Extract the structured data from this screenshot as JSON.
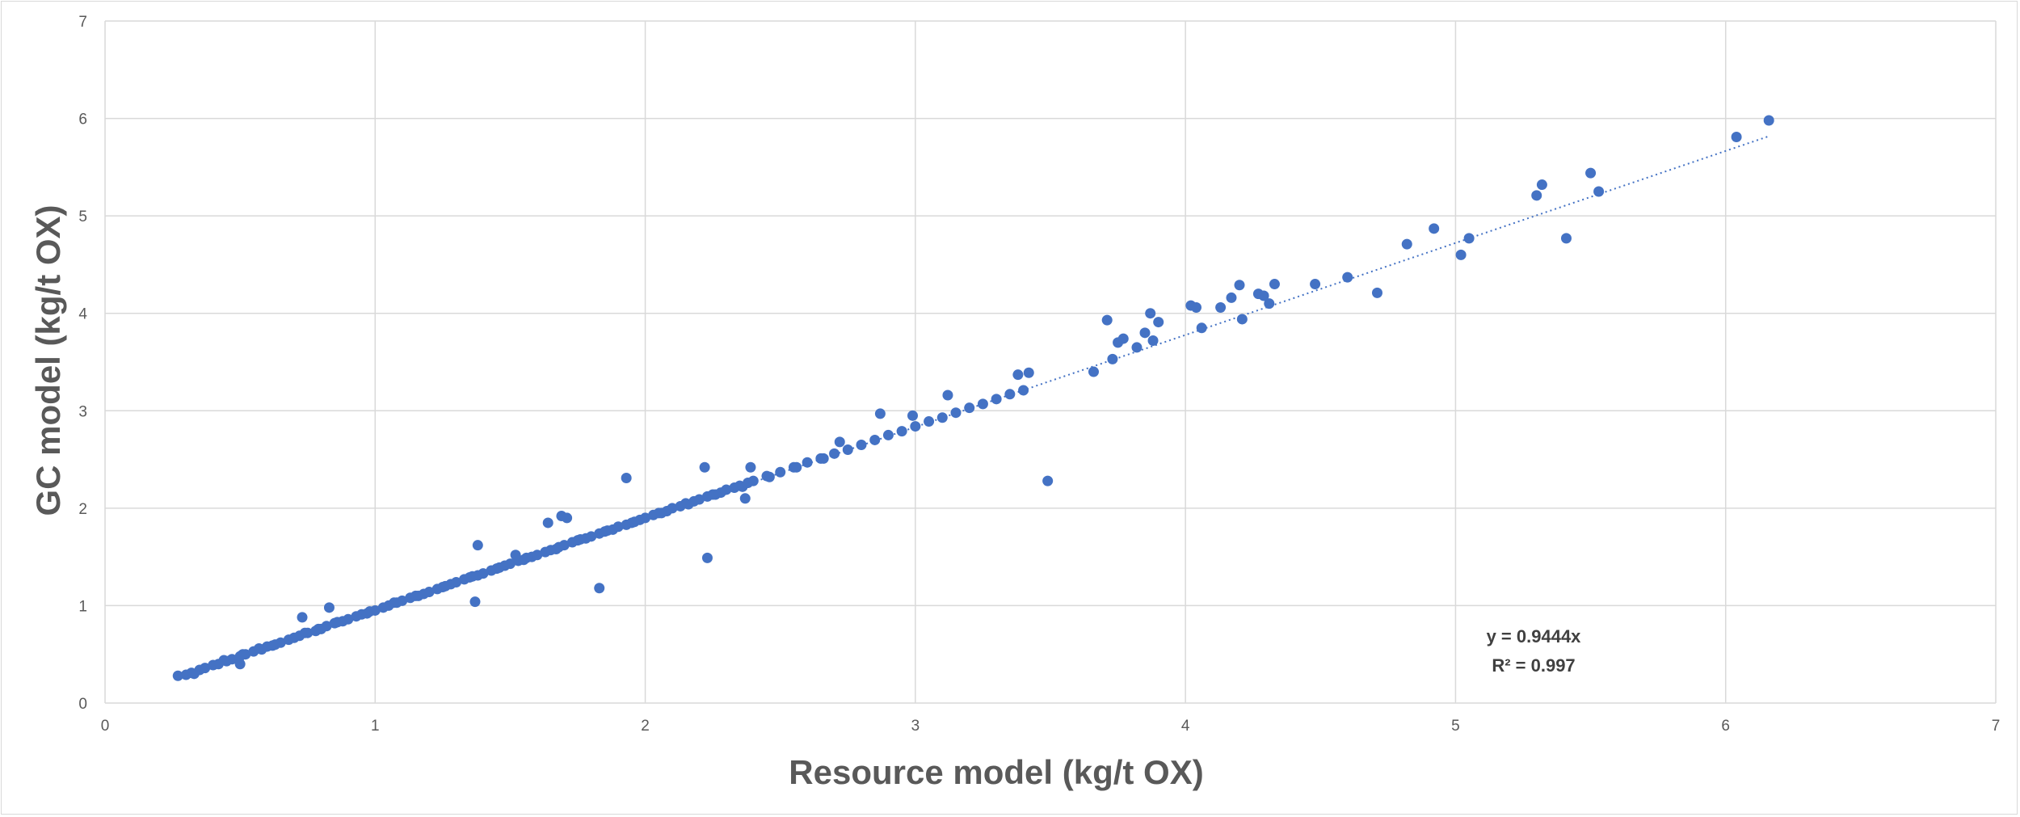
{
  "chart_data": {
    "type": "scatter",
    "title": "",
    "xlabel": "Resource model (kg/t OX)",
    "ylabel": "GC model (kg/t OX)",
    "xlim": [
      0,
      7
    ],
    "ylim": [
      0,
      7
    ],
    "x_ticks": [
      "0",
      "1",
      "2",
      "3",
      "4",
      "5",
      "6",
      "7"
    ],
    "y_ticks": [
      "0",
      "1",
      "2",
      "3",
      "4",
      "5",
      "6",
      "7"
    ],
    "grid": true,
    "point_color": "#4472C4",
    "trendline": {
      "type": "linear-through-origin",
      "slope": 0.9444,
      "x_range": [
        0.27,
        6.16
      ],
      "style": "dotted",
      "equation_label": "y = 0.9444x",
      "r2_label": "R² = 0.997"
    },
    "series": [
      {
        "name": "",
        "x": [
          0.27,
          0.3,
          0.32,
          0.35,
          0.37,
          0.4,
          0.42,
          0.45,
          0.47,
          0.5,
          0.52,
          0.55,
          0.58,
          0.6,
          0.62,
          0.65,
          0.68,
          0.7,
          0.72,
          0.75,
          0.78,
          0.8,
          0.82,
          0.85,
          0.88,
          0.9,
          0.93,
          0.95,
          0.98,
          1.0,
          1.03,
          1.05,
          1.08,
          1.1,
          1.13,
          1.15,
          1.18,
          1.2,
          1.23,
          1.25,
          1.28,
          1.3,
          1.33,
          1.35,
          1.38,
          1.4,
          1.43,
          1.45,
          1.48,
          1.5,
          1.53,
          1.55,
          1.58,
          1.6,
          1.63,
          1.65,
          1.68,
          1.7,
          1.73,
          1.75,
          1.78,
          1.8,
          1.83,
          1.85,
          1.88,
          1.9,
          1.93,
          1.95,
          1.98,
          2.0,
          2.03,
          2.05,
          2.08,
          2.1,
          2.13,
          2.15,
          2.18,
          2.2,
          2.23,
          2.25,
          2.28,
          2.3,
          2.33,
          2.35,
          2.38,
          2.4,
          2.45,
          2.5,
          2.55,
          2.6,
          2.65,
          2.7,
          2.75,
          2.8,
          2.85,
          2.9,
          2.95,
          3.0,
          3.05,
          3.1,
          3.15,
          3.2,
          3.25,
          3.3,
          3.35,
          3.4,
          0.33,
          0.44,
          0.51,
          0.57,
          0.63,
          0.74,
          0.79,
          0.86,
          0.97,
          1.07,
          1.16,
          1.26,
          1.36,
          1.46,
          1.56,
          1.67,
          1.76,
          1.86,
          1.96,
          2.06,
          2.16,
          2.26,
          2.36,
          2.46,
          2.56,
          2.66,
          0.5,
          0.73,
          0.83,
          1.37,
          1.38,
          1.52,
          1.64,
          1.69,
          1.71,
          1.83,
          1.93,
          2.22,
          2.23,
          2.37,
          2.39,
          2.72,
          2.87,
          2.99,
          3.12,
          3.38,
          3.42,
          3.49,
          3.66,
          3.71,
          3.73,
          3.75,
          3.77,
          3.82,
          3.85,
          3.87,
          3.88,
          3.9,
          4.02,
          4.04,
          4.06,
          4.13,
          4.17,
          4.2,
          4.21,
          4.27,
          4.29,
          4.31,
          4.33,
          4.48,
          4.6,
          4.71,
          4.82,
          4.92,
          5.02,
          5.05,
          5.3,
          5.32,
          5.41,
          5.5,
          5.53,
          6.04,
          6.16
        ],
        "y": [
          0.28,
          0.29,
          0.31,
          0.34,
          0.36,
          0.39,
          0.4,
          0.43,
          0.45,
          0.48,
          0.5,
          0.53,
          0.55,
          0.58,
          0.59,
          0.62,
          0.65,
          0.67,
          0.69,
          0.72,
          0.74,
          0.76,
          0.79,
          0.82,
          0.84,
          0.86,
          0.89,
          0.91,
          0.94,
          0.95,
          0.98,
          1.0,
          1.03,
          1.05,
          1.08,
          1.1,
          1.12,
          1.14,
          1.17,
          1.19,
          1.22,
          1.24,
          1.27,
          1.29,
          1.31,
          1.33,
          1.36,
          1.38,
          1.41,
          1.43,
          1.46,
          1.47,
          1.5,
          1.52,
          1.55,
          1.57,
          1.6,
          1.62,
          1.65,
          1.67,
          1.69,
          1.71,
          1.74,
          1.76,
          1.78,
          1.81,
          1.83,
          1.85,
          1.88,
          1.9,
          1.93,
          1.95,
          1.97,
          2.0,
          2.02,
          2.05,
          2.07,
          2.09,
          2.12,
          2.14,
          2.16,
          2.19,
          2.21,
          2.23,
          2.26,
          2.28,
          2.33,
          2.37,
          2.42,
          2.47,
          2.51,
          2.56,
          2.6,
          2.65,
          2.7,
          2.75,
          2.79,
          2.84,
          2.89,
          2.93,
          2.98,
          3.03,
          3.07,
          3.12,
          3.17,
          3.21,
          0.3,
          0.44,
          0.5,
          0.56,
          0.6,
          0.72,
          0.76,
          0.83,
          0.92,
          1.03,
          1.1,
          1.2,
          1.3,
          1.39,
          1.49,
          1.58,
          1.68,
          1.77,
          1.86,
          1.95,
          2.04,
          2.14,
          2.22,
          2.32,
          2.42,
          2.51,
          0.4,
          0.88,
          0.98,
          1.04,
          1.62,
          1.52,
          1.85,
          1.92,
          1.9,
          1.18,
          2.31,
          2.42,
          1.49,
          2.1,
          2.42,
          2.68,
          2.97,
          2.95,
          3.16,
          3.37,
          3.39,
          2.28,
          3.4,
          3.93,
          3.53,
          3.7,
          3.74,
          3.65,
          3.8,
          4.0,
          3.72,
          3.91,
          4.08,
          4.06,
          3.85,
          4.06,
          4.16,
          4.29,
          3.94,
          4.2,
          4.18,
          4.1,
          4.3,
          4.3,
          4.37,
          4.21,
          4.71,
          4.87,
          4.6,
          4.77,
          5.21,
          5.32,
          4.77,
          5.44,
          5.25,
          5.81,
          5.98
        ]
      }
    ]
  }
}
